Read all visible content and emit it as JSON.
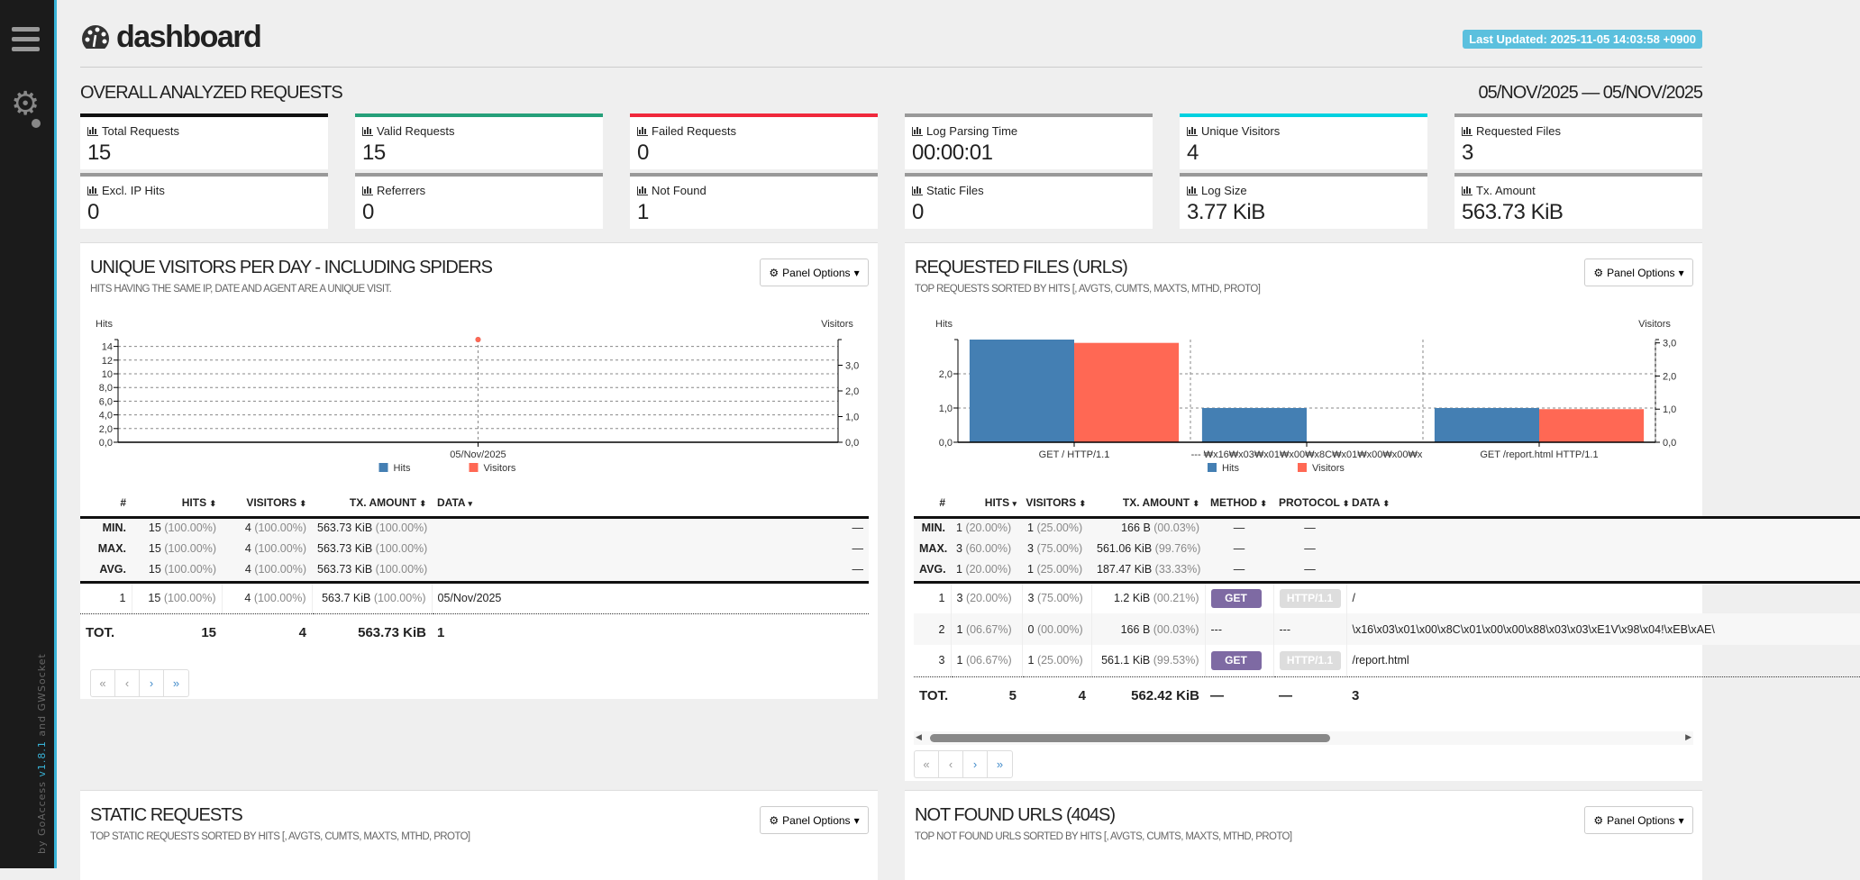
{
  "sidebar": {
    "credit_by": "by GoAccess ",
    "credit_version": "v1.8.1",
    "credit_and": " and GWSocket"
  },
  "header": {
    "title": "dashboard",
    "last_updated": "Last Updated: 2025-11-05 14:03:58 +0900"
  },
  "overall": {
    "title": "OVERALL ANALYZED REQUESTS",
    "date_range": "05/NOV/2025 — 05/NOV/2025",
    "cards": [
      {
        "label": "Total Requests",
        "value": "15",
        "color": "#111111"
      },
      {
        "label": "Valid Requests",
        "value": "15",
        "color": "#26a07a"
      },
      {
        "label": "Failed Requests",
        "value": "0",
        "color": "#f0283c"
      },
      {
        "label": "Log Parsing Time",
        "value": "00:00:01",
        "color": "#999999"
      },
      {
        "label": "Unique Visitors",
        "value": "4",
        "color": "#00d1e0"
      },
      {
        "label": "Requested Files",
        "value": "3",
        "color": "#999999"
      },
      {
        "label": "Excl. IP Hits",
        "value": "0",
        "color": "#999999"
      },
      {
        "label": "Referrers",
        "value": "0",
        "color": "#999999"
      },
      {
        "label": "Not Found",
        "value": "1",
        "color": "#999999"
      },
      {
        "label": "Static Files",
        "value": "0",
        "color": "#999999"
      },
      {
        "label": "Log Size",
        "value": "3.77 KiB",
        "color": "#999999"
      },
      {
        "label": "Tx. Amount",
        "value": "563.73 KiB",
        "color": "#999999"
      }
    ]
  },
  "panel_options_label": "Panel Options",
  "visitors": {
    "title": "UNIQUE VISITORS PER DAY - INCLUDING SPIDERS",
    "subtitle": "HITS HAVING THE SAME IP, DATE AND AGENT ARE A UNIQUE VISIT.",
    "headers": [
      "#",
      "HITS",
      "VISITORS",
      "TX. AMOUNT",
      "DATA"
    ],
    "meta": [
      {
        "label": "MIN.",
        "hits": "15",
        "hits_pct": "(100.00%)",
        "visitors": "4",
        "visitors_pct": "(100.00%)",
        "tx": "563.73 KiB",
        "tx_pct": "(100.00%)",
        "data": "—"
      },
      {
        "label": "MAX.",
        "hits": "15",
        "hits_pct": "(100.00%)",
        "visitors": "4",
        "visitors_pct": "(100.00%)",
        "tx": "563.73 KiB",
        "tx_pct": "(100.00%)",
        "data": "—"
      },
      {
        "label": "AVG.",
        "hits": "15",
        "hits_pct": "(100.00%)",
        "visitors": "4",
        "visitors_pct": "(100.00%)",
        "tx": "563.73 KiB",
        "tx_pct": "(100.00%)",
        "data": "—"
      }
    ],
    "rows": [
      {
        "n": "1",
        "hits": "15",
        "hits_pct": "(100.00%)",
        "visitors": "4",
        "visitors_pct": "(100.00%)",
        "tx": "563.7 KiB",
        "tx_pct": "(100.00%)",
        "data": "05/Nov/2025"
      }
    ],
    "total": {
      "label": "TOT.",
      "hits": "15",
      "visitors": "4",
      "tx": "563.73 KiB",
      "data": "1"
    }
  },
  "requests": {
    "title": "REQUESTED FILES (URLS)",
    "subtitle": "TOP REQUESTS SORTED BY HITS [, AVGTS, CUMTS, MAXTS, MTHD, PROTO]",
    "headers": [
      "#",
      "HITS",
      "VISITORS",
      "TX. AMOUNT",
      "METHOD",
      "PROTOCOL",
      "DATA"
    ],
    "meta": [
      {
        "label": "MIN.",
        "hits": "1",
        "hits_pct": "(20.00%)",
        "visitors": "1",
        "visitors_pct": "(25.00%)",
        "tx": "166 B",
        "tx_pct": "(00.03%)",
        "method": "—",
        "protocol": "—"
      },
      {
        "label": "MAX.",
        "hits": "3",
        "hits_pct": "(60.00%)",
        "visitors": "3",
        "visitors_pct": "(75.00%)",
        "tx": "561.06 KiB",
        "tx_pct": "(99.76%)",
        "method": "—",
        "protocol": "—"
      },
      {
        "label": "AVG.",
        "hits": "1",
        "hits_pct": "(20.00%)",
        "visitors": "1",
        "visitors_pct": "(25.00%)",
        "tx": "187.47 KiB",
        "tx_pct": "(33.33%)",
        "method": "—",
        "protocol": "—"
      }
    ],
    "rows": [
      {
        "n": "1",
        "hits": "3",
        "hits_pct": "(20.00%)",
        "visitors": "3",
        "visitors_pct": "(75.00%)",
        "tx": "1.2 KiB",
        "tx_pct": "(00.21%)",
        "method": "GET",
        "protocol": "HTTP/1.1",
        "data": "/"
      },
      {
        "n": "2",
        "hits": "1",
        "hits_pct": "(06.67%)",
        "visitors": "0",
        "visitors_pct": "(00.00%)",
        "tx": "166 B",
        "tx_pct": "(00.03%)",
        "method": "---",
        "protocol": "---",
        "data": "\\x16\\x03\\x01\\x00\\x8C\\x01\\x00\\x00\\x88\\x03\\x03\\xE1V\\x98\\x04!\\xEB\\xAE\\"
      },
      {
        "n": "3",
        "hits": "1",
        "hits_pct": "(06.67%)",
        "visitors": "1",
        "visitors_pct": "(25.00%)",
        "tx": "561.1 KiB",
        "tx_pct": "(99.53%)",
        "method": "GET",
        "protocol": "HTTP/1.1",
        "data": "/report.html"
      }
    ],
    "total": {
      "label": "TOT.",
      "hits": "5",
      "visitors": "4",
      "tx": "562.42 KiB",
      "method": "—",
      "protocol": "—",
      "data": "3"
    }
  },
  "static": {
    "title": "STATIC REQUESTS",
    "subtitle": "TOP STATIC REQUESTS SORTED BY HITS [, AVGTS, CUMTS, MAXTS, MTHD, PROTO]"
  },
  "notfound": {
    "title": "NOT FOUND URLS (404S)",
    "subtitle": "TOP NOT FOUND URLS SORTED BY HITS [, AVGTS, CUMTS, MAXTS, MTHD, PROTO]"
  },
  "pager": [
    "«",
    "‹",
    "›",
    "»"
  ],
  "chart_data": [
    {
      "type": "line",
      "title": "UNIQUE VISITORS PER DAY - INCLUDING SPIDERS",
      "categories": [
        "05/Nov/2025"
      ],
      "series": [
        {
          "name": "Hits",
          "values": [
            15
          ],
          "color": "#447fb3"
        },
        {
          "name": "Visitors",
          "values": [
            4
          ],
          "color": "#ff6854"
        }
      ],
      "ylabel": "Hits",
      "y2label": "Visitors",
      "ylim": [
        0,
        15
      ],
      "y2lim": [
        0,
        4
      ],
      "yticks": [
        "0,0",
        "2,0",
        "4,0",
        "6,0",
        "8,0",
        "10",
        "12",
        "14"
      ],
      "yticks_values": [
        0,
        2,
        4,
        6,
        8,
        10,
        12,
        14
      ],
      "y2ticks": [
        "0,0",
        "1,0",
        "2,0",
        "3,0"
      ],
      "y2ticks_values": [
        0,
        1,
        2,
        3
      ],
      "grid": true,
      "legend": "bottom"
    },
    {
      "type": "bar",
      "title": "REQUESTED FILES (URLS)",
      "categories": [
        "GET / HTTP/1.1",
        "--- ₩x16₩x03₩x01₩x00₩x8C₩x01₩x00₩x00₩x",
        "GET /report.html HTTP/1.1"
      ],
      "series": [
        {
          "name": "Hits",
          "values": [
            3,
            1,
            1
          ],
          "color": "#447fb3"
        },
        {
          "name": "Visitors",
          "values": [
            3,
            0,
            1
          ],
          "color": "#ff6854"
        }
      ],
      "ylabel": "Hits",
      "y2label": "Visitors",
      "ylim": [
        0,
        3
      ],
      "y2lim": [
        0,
        3.1
      ],
      "yticks": [
        "0,0",
        "1,0",
        "2,0"
      ],
      "yticks_values": [
        0,
        1,
        2
      ],
      "y2ticks": [
        "0,0",
        "1,0",
        "2,0",
        "3,0"
      ],
      "y2ticks_values": [
        0,
        1,
        2,
        3
      ],
      "grid": true,
      "legend": "bottom"
    }
  ]
}
